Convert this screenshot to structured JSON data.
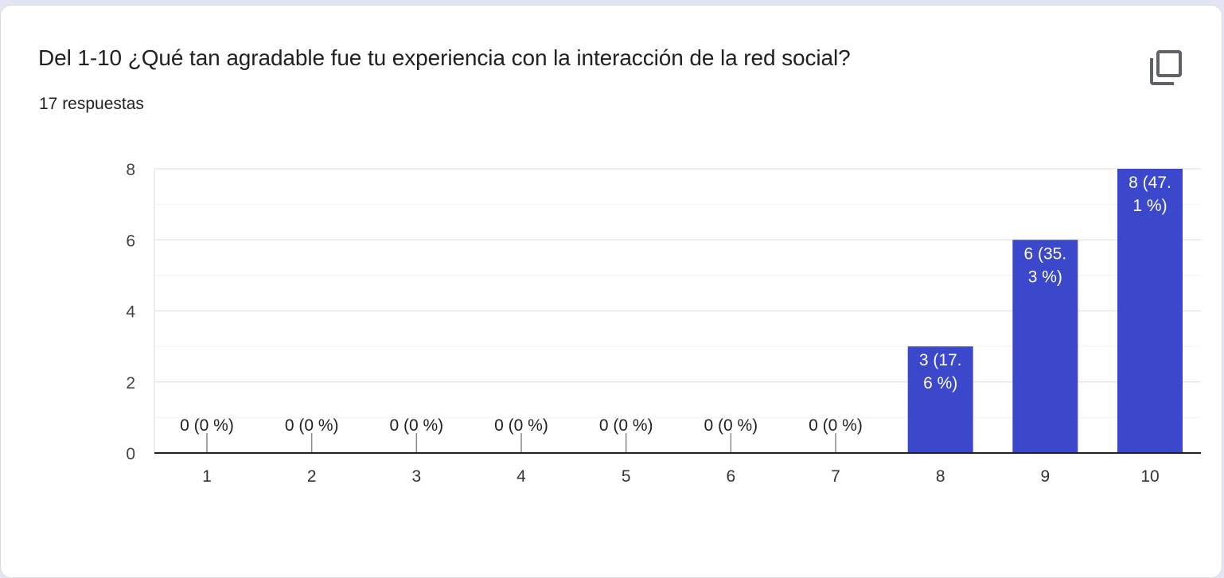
{
  "question": {
    "title": "Del 1-10 ¿Qué tan agradable fue tu experiencia con la interacción de la red social?",
    "responses": "17 respuestas",
    "copy_icon": "copy-icon"
  },
  "colors": {
    "bar": "#3b48cc",
    "bar_label_inside": "#ffffff",
    "label_outside": "#202124",
    "axis": "#202124",
    "grid": "#e8e8e8",
    "grid_minor": "#f3f3f3"
  },
  "chart_data": {
    "type": "bar",
    "title": "Del 1-10 ¿Qué tan agradable fue tu experiencia con la interacción de la red social?",
    "categories": [
      "1",
      "2",
      "3",
      "4",
      "5",
      "6",
      "7",
      "8",
      "9",
      "10"
    ],
    "values": [
      0,
      0,
      0,
      0,
      0,
      0,
      0,
      3,
      6,
      8
    ],
    "data_labels": [
      [
        "0 (0 %)"
      ],
      [
        "0 (0 %)"
      ],
      [
        "0 (0 %)"
      ],
      [
        "0 (0 %)"
      ],
      [
        "0 (0 %)"
      ],
      [
        "0 (0 %)"
      ],
      [
        "0 (0 %)"
      ],
      [
        "3 (17.",
        "6 %)"
      ],
      [
        "6 (35.",
        "3 %)"
      ],
      [
        "8 (47.",
        "1 %)"
      ]
    ],
    "y_ticks": [
      "0",
      "2",
      "4",
      "6",
      "8"
    ],
    "ylim": [
      0,
      8
    ],
    "xlabel": "",
    "ylabel": "",
    "grid": true
  }
}
